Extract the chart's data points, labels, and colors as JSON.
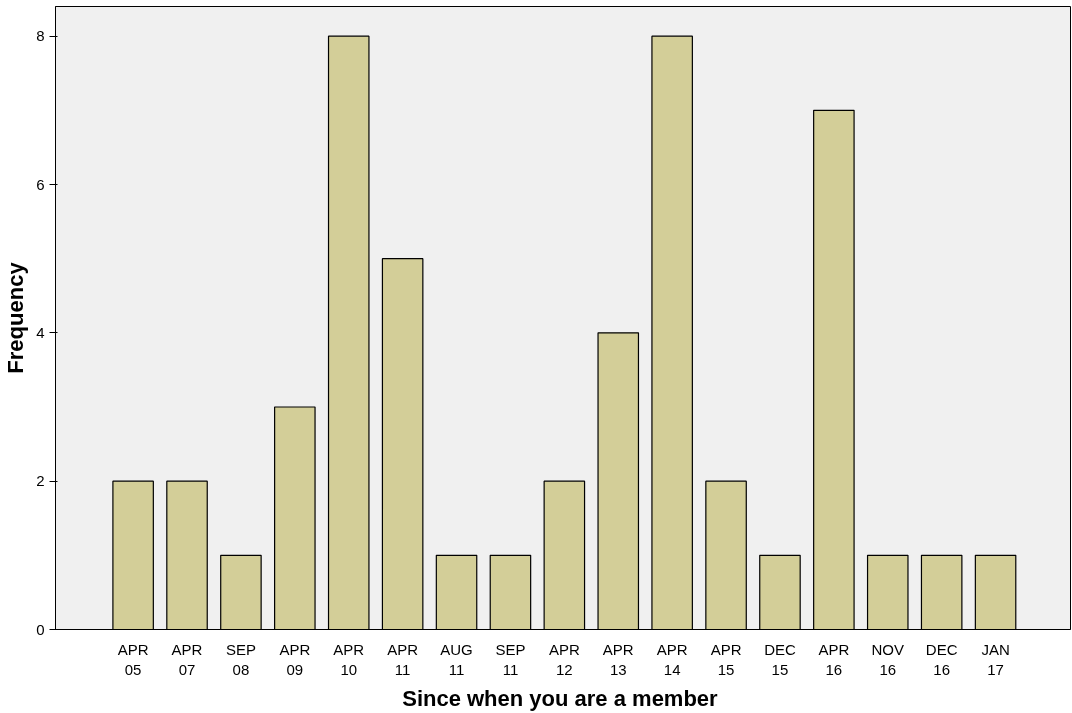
{
  "chart_data": {
    "type": "bar",
    "xlabel": "Since  when you are a member",
    "ylabel": "Frequency",
    "categories": [
      "APR\n05",
      "APR\n07",
      "SEP\n08",
      "APR\n09",
      "APR\n10",
      "APR\n11",
      "AUG\n11",
      "SEP\n11",
      "APR\n12",
      "APR\n13",
      "APR\n14",
      "APR\n15",
      "DEC\n15",
      "APR\n16",
      "NOV\n16",
      "DEC\n16",
      "JAN\n17"
    ],
    "values": [
      2,
      2,
      1,
      3,
      8,
      5,
      1,
      1,
      2,
      4,
      8,
      2,
      1,
      7,
      1,
      1,
      1
    ],
    "color": "#d3ce98",
    "ylim": [
      0,
      8.4
    ],
    "yticks": [
      0,
      2,
      4,
      6,
      8
    ],
    "grid": false
  }
}
